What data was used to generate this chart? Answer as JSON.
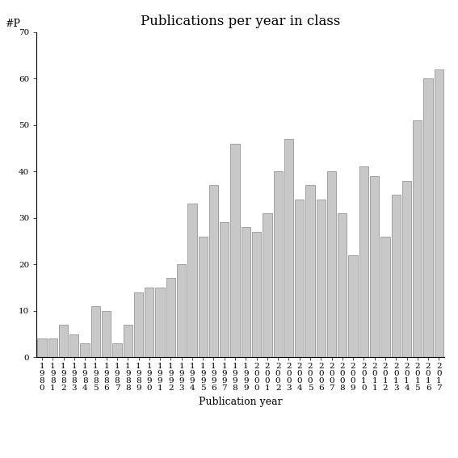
{
  "title": "Publications per year in class",
  "xlabel": "Publication year",
  "ylabel": "#P",
  "ylim": [
    0,
    70
  ],
  "yticks": [
    0,
    10,
    20,
    30,
    40,
    50,
    60,
    70
  ],
  "years": [
    "1980",
    "1981",
    "1982",
    "1983",
    "1984",
    "1985",
    "1986",
    "1987",
    "1988",
    "1989",
    "1990",
    "1991",
    "1992",
    "1993",
    "1994",
    "1995",
    "1996",
    "1997",
    "1998",
    "1999",
    "2000",
    "2001",
    "2002",
    "2003",
    "2004",
    "2005",
    "2006",
    "2007",
    "2008",
    "2009",
    "2010",
    "2011",
    "2012",
    "2013",
    "2014",
    "2015",
    "2016",
    "2017"
  ],
  "values": [
    4,
    4,
    7,
    5,
    3,
    11,
    10,
    3,
    7,
    14,
    15,
    15,
    17,
    20,
    33,
    26,
    37,
    29,
    46,
    28,
    27,
    31,
    40,
    47,
    34,
    37,
    34,
    40,
    31,
    22,
    41,
    39,
    26,
    35,
    38,
    51,
    60,
    62
  ],
  "bar_color": "#c8c8c8",
  "bar_edgecolor": "#888888",
  "background_color": "#ffffff",
  "title_fontsize": 12,
  "axis_label_fontsize": 9,
  "tick_label_fontsize": 7.5
}
